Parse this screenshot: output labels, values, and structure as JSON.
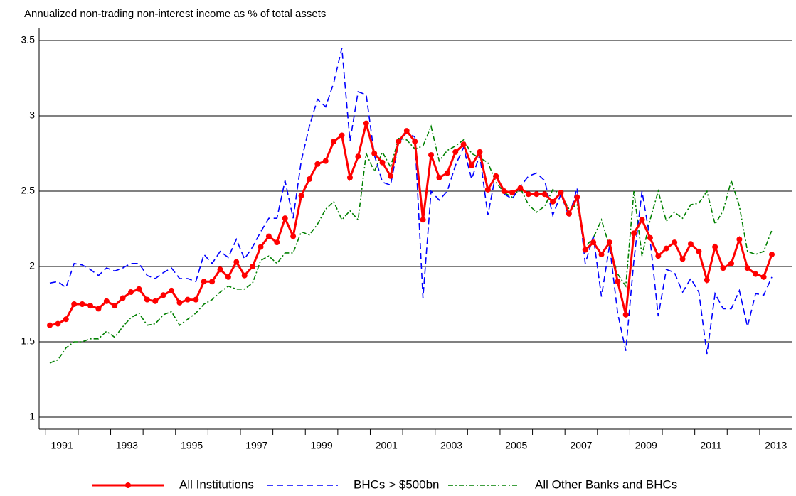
{
  "chart_data": {
    "type": "line",
    "title": "Annualized non-trading non-interest income as % of total assets",
    "categories": [
      null,
      "1991",
      null,
      null,
      null,
      null,
      null,
      null,
      null,
      "1993",
      null,
      null,
      null,
      null,
      null,
      null,
      null,
      "1995",
      null,
      null,
      null,
      null,
      null,
      null,
      null,
      "1997",
      null,
      null,
      null,
      null,
      null,
      null,
      null,
      "1999",
      null,
      null,
      null,
      null,
      null,
      null,
      null,
      "2001",
      null,
      null,
      null,
      null,
      null,
      null,
      null,
      "2003",
      null,
      null,
      null,
      null,
      null,
      null,
      null,
      "2005",
      null,
      null,
      null,
      null,
      null,
      null,
      null,
      "2007",
      null,
      null,
      null,
      null,
      null,
      null,
      null,
      "2009",
      null,
      null,
      null,
      null,
      null,
      null,
      null,
      "2011",
      null,
      null,
      null,
      null,
      null,
      null,
      null,
      "2013"
    ],
    "series": [
      {
        "name": "All Institutions",
        "color": "#ff0000",
        "style": "solid-markers",
        "values": [
          1.61,
          1.62,
          1.65,
          1.75,
          1.75,
          1.74,
          1.72,
          1.77,
          1.74,
          1.79,
          1.83,
          1.85,
          1.78,
          1.77,
          1.81,
          1.84,
          1.76,
          1.78,
          1.78,
          1.9,
          1.9,
          1.98,
          1.93,
          2.03,
          1.94,
          2.0,
          2.13,
          2.2,
          2.16,
          2.32,
          2.2,
          2.47,
          2.58,
          2.68,
          2.7,
          2.83,
          2.87,
          2.59,
          2.73,
          2.95,
          2.75,
          2.69,
          2.6,
          2.83,
          2.9,
          2.83,
          2.31,
          2.74,
          2.59,
          2.62,
          2.76,
          2.81,
          2.67,
          2.76,
          2.51,
          2.6,
          2.5,
          2.49,
          2.52,
          2.48,
          2.48,
          2.48,
          2.43,
          2.49,
          2.35,
          2.46,
          2.11,
          2.16,
          2.08,
          2.16,
          1.9,
          1.68,
          2.22,
          2.31,
          2.19,
          2.07,
          2.12,
          2.16,
          2.05,
          2.15,
          2.1,
          1.91,
          2.13,
          1.99,
          2.02,
          2.18,
          1.99,
          1.95,
          1.93,
          2.08
        ]
      },
      {
        "name": "BHCs > $500bn",
        "color": "#0000ff",
        "style": "dashed",
        "values": [
          1.89,
          1.9,
          1.86,
          2.02,
          2.01,
          1.98,
          1.94,
          1.99,
          1.97,
          1.99,
          2.02,
          2.02,
          1.94,
          1.92,
          1.96,
          1.99,
          1.92,
          1.92,
          1.9,
          2.08,
          2.02,
          2.1,
          2.06,
          2.18,
          2.05,
          2.13,
          2.23,
          2.32,
          2.32,
          2.57,
          2.32,
          2.7,
          2.93,
          3.11,
          3.06,
          3.22,
          3.45,
          2.83,
          3.16,
          3.14,
          2.74,
          2.56,
          2.54,
          2.82,
          2.89,
          2.86,
          1.79,
          2.5,
          2.44,
          2.5,
          2.67,
          2.79,
          2.58,
          2.74,
          2.34,
          2.62,
          2.48,
          2.45,
          2.53,
          2.6,
          2.62,
          2.57,
          2.34,
          2.48,
          2.33,
          2.52,
          2.02,
          2.2,
          1.8,
          2.14,
          1.69,
          1.44,
          2.04,
          2.5,
          2.18,
          1.67,
          1.98,
          1.96,
          1.83,
          1.92,
          1.83,
          1.42,
          1.82,
          1.72,
          1.72,
          1.84,
          1.6,
          1.82,
          1.81,
          1.93
        ]
      },
      {
        "name": "All Other Banks and BHCs",
        "color": "#008000",
        "style": "dashdot",
        "values": [
          1.36,
          1.38,
          1.46,
          1.5,
          1.5,
          1.52,
          1.52,
          1.57,
          1.53,
          1.6,
          1.66,
          1.69,
          1.61,
          1.62,
          1.68,
          1.7,
          1.61,
          1.65,
          1.69,
          1.75,
          1.78,
          1.83,
          1.87,
          1.85,
          1.85,
          1.89,
          2.04,
          2.07,
          2.02,
          2.09,
          2.09,
          2.23,
          2.21,
          2.28,
          2.38,
          2.43,
          2.31,
          2.37,
          2.31,
          2.75,
          2.63,
          2.76,
          2.66,
          2.85,
          2.84,
          2.78,
          2.8,
          2.93,
          2.7,
          2.77,
          2.8,
          2.84,
          2.75,
          2.72,
          2.69,
          2.56,
          2.49,
          2.46,
          2.52,
          2.41,
          2.36,
          2.4,
          2.51,
          2.48,
          2.38,
          2.41,
          2.13,
          2.19,
          2.31,
          2.13,
          1.95,
          1.87,
          2.5,
          2.07,
          2.31,
          2.5,
          2.3,
          2.36,
          2.32,
          2.41,
          2.42,
          2.5,
          2.28,
          2.37,
          2.57,
          2.4,
          2.1,
          2.08,
          2.1,
          2.24
        ]
      }
    ],
    "ylim": [
      0.92,
      3.58
    ],
    "yticks": [
      1,
      1.5,
      2,
      2.5,
      3,
      3.5
    ],
    "grid": true,
    "legend": "bottom"
  }
}
